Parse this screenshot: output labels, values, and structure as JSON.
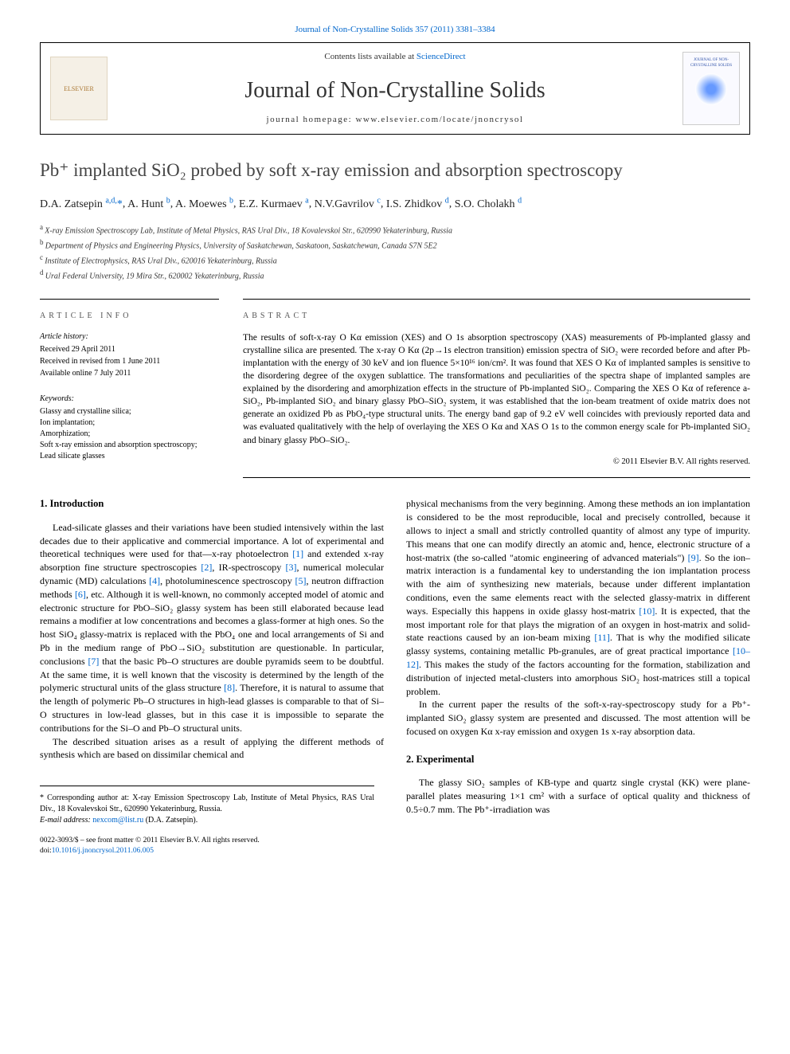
{
  "journal_ref_link": "Journal of Non-Crystalline Solids 357 (2011) 3381–3384",
  "header": {
    "contents_prefix": "Contents lists available at ",
    "contents_link": "ScienceDirect",
    "journal_name": "Journal of Non-Crystalline Solids",
    "homepage_prefix": "journal homepage: ",
    "homepage_url": "www.elsevier.com/locate/jnoncrysol",
    "elsevier_label": "ELSEVIER",
    "cover_label": "JOURNAL OF NON-CRYSTALLINE SOLIDS"
  },
  "title": "Pb⁺ implanted SiO₂ probed by soft x-ray emission and absorption spectroscopy",
  "authors_html": "D.A. Zatsepin <sup>a,d,</sup>*, A. Hunt <sup>b</sup>, A. Moewes <sup>b</sup>, E.Z. Kurmaev <sup>a</sup>, N.V.Gavrilov <sup>c</sup>, I.S. Zhidkov <sup>d</sup>, S.O. Cholakh <sup>d</sup>",
  "authors": [
    {
      "name": "D.A. Zatsepin",
      "sup": "a,d,",
      "star": true
    },
    {
      "name": "A. Hunt",
      "sup": "b"
    },
    {
      "name": "A. Moewes",
      "sup": "b"
    },
    {
      "name": "E.Z. Kurmaev",
      "sup": "a"
    },
    {
      "name": "N.V.Gavrilov",
      "sup": "c"
    },
    {
      "name": "I.S. Zhidkov",
      "sup": "d"
    },
    {
      "name": "S.O. Cholakh",
      "sup": "d"
    }
  ],
  "affiliations": [
    {
      "sup": "a",
      "text": "X-ray Emission Spectroscopy Lab, Institute of Metal Physics, RAS Ural Div., 18 Kovalevskoi Str., 620990 Yekaterinburg, Russia"
    },
    {
      "sup": "b",
      "text": "Department of Physics and Engineering Physics, University of Saskatchewan, Saskatoon, Saskatchewan, Canada S7N 5E2"
    },
    {
      "sup": "c",
      "text": "Institute of Electrophysics, RAS Ural Div., 620016 Yekaterinburg, Russia"
    },
    {
      "sup": "d",
      "text": "Ural Federal University, 19 Mira Str., 620002 Yekaterinburg, Russia"
    }
  ],
  "article_info": {
    "heading": "ARTICLE INFO",
    "history_label": "Article history:",
    "history": [
      "Received 29 April 2011",
      "Received in revised from 1 June 2011",
      "Available online 7 July 2011"
    ],
    "keywords_label": "Keywords:",
    "keywords": [
      "Glassy and crystalline silica;",
      "Ion implantation;",
      "Amorphization;",
      "Soft x-ray emission and absorption spectroscopy;",
      "Lead silicate glasses"
    ]
  },
  "abstract": {
    "heading": "ABSTRACT",
    "text": "The results of soft-x-ray O Kα emission (XES) and O 1s absorption spectroscopy (XAS) measurements of Pb-implanted glassy and crystalline silica are presented. The x-ray O Kα (2p→1s electron transition) emission spectra of SiO₂ were recorded before and after Pb-implantation with the energy of 30 keV and ion fluence 5×10¹⁶ ion/cm². It was found that XES O Kα of implanted samples is sensitive to the disordering degree of the oxygen sublattice. The transformations and peculiarities of the spectra shape of implanted samples are explained by the disordering and amorphization effects in the structure of Pb-implanted SiO₂. Comparing the XES O Kα of reference a-SiO₂, Pb-implanted SiO₂ and binary glassy PbO–SiO₂ system, it was established that the ion-beam treatment of oxide matrix does not generate an oxidized Pb as PbO₄-type structural units. The energy band gap of 9.2 eV well coincides with previously reported data and was evaluated qualitatively with the help of overlaying the XES O Kα and XAS O 1s to the common energy scale for Pb-implanted SiO₂ and binary glassy PbO–SiO₂.",
    "copyright": "© 2011 Elsevier B.V. All rights reserved."
  },
  "body": {
    "col1": {
      "heading": "1. Introduction",
      "p1": "Lead-silicate glasses and their variations have been studied intensively within the last decades due to their applicative and commercial importance. A lot of experimental and theoretical techniques were used for that—x-ray photoelectron [1] and extended x-ray absorption fine structure spectroscopies [2], IR-spectroscopy [3], numerical molecular dynamic (MD) calculations [4], photoluminescence spectroscopy [5], neutron diffraction methods [6], etc. Although it is well-known, no commonly accepted model of atomic and electronic structure for PbO–SiO₂ glassy system has been still elaborated because lead remains a modifier at low concentrations and becomes a glass-former at high ones. So the host SiO₄ glassy-matrix is replaced with the PbO₄ one and local arrangements of Si and Pb in the medium range of PbO→SiO₂ substitution are questionable. In particular, conclusions [7] that the basic Pb–O structures are double pyramids seem to be doubtful. At the same time, it is well known that the viscosity is determined by the length of the polymeric structural units of the glass structure [8]. Therefore, it is natural to assume that the length of polymeric Pb–O structures in high-lead glasses is comparable to that of Si–O structures in low-lead glasses, but in this case it is impossible to separate the contributions for the Si–O and Pb–O structural units.",
      "p2": "The described situation arises as a result of applying the different methods of synthesis which are based on dissimilar chemical and"
    },
    "col2": {
      "p1": "physical mechanisms from the very beginning. Among these methods an ion implantation is considered to be the most reproducible, local and precisely controlled, because it allows to inject a small and strictly controlled quantity of almost any type of impurity. This means that one can modify directly an atomic and, hence, electronic structure of a host-matrix (the so-called \"atomic engineering of advanced materials\") [9]. So the ion–matrix interaction is a fundamental key to understanding the ion implantation process with the aim of synthesizing new materials, because under different implantation conditions, even the same elements react with the selected glassy-matrix in different ways. Especially this happens in oxide glassy host-matrix [10]. It is expected, that the most important role for that plays the migration of an oxygen in host-matrix and solid-state reactions caused by an ion-beam mixing [11]. That is why the modified silicate glassy systems, containing metallic Pb-granules, are of great practical importance [10–12]. This makes the study of the factors accounting for the formation, stabilization and distribution of injected metal-clusters into amorphous SiO₂ host-matrices still a topical problem.",
      "p2": "In the current paper the results of the soft-x-ray-spectroscopy study for a Pb⁺-implanted SiO₂ glassy system are presented and discussed. The most attention will be focused on oxygen Kα x-ray emission and oxygen 1s x-ray absorption data.",
      "heading2": "2. Experimental",
      "p3": "The glassy SiO₂ samples of KB-type and quartz single crystal (KK) were plane-parallel plates measuring 1×1 cm² with a surface of optical quality and thickness of 0.5÷0.7 mm. The Pb⁺-irradiation was"
    }
  },
  "footer": {
    "corresponding": "* Corresponding author at: X-ray Emission Spectroscopy Lab, Institute of Metal Physics, RAS Ural Div., 18 Kovalevskoi Str., 620990 Yekaterinburg, Russia.",
    "email_label": "E-mail address: ",
    "email": "nexcom@list.ru",
    "email_suffix": " (D.A. Zatsepin).",
    "issn": "0022-3093/$ – see front matter © 2011 Elsevier B.V. All rights reserved.",
    "doi_prefix": "doi:",
    "doi": "10.1016/j.jnoncrysol.2011.06.005"
  },
  "refs_in_body": [
    "[1]",
    "[2]",
    "[3]",
    "[4]",
    "[5]",
    "[6]",
    "[7]",
    "[8]",
    "[9]",
    "[10]",
    "[11]",
    "[10–12]"
  ],
  "colors": {
    "link": "#0066cc",
    "text": "#000000",
    "heading_gray": "#555555",
    "background": "#ffffff"
  },
  "typography": {
    "base_font": "Georgia, Times New Roman, serif",
    "base_size_pt": 10,
    "title_size_pt": 18,
    "journal_name_size_pt": 22
  }
}
